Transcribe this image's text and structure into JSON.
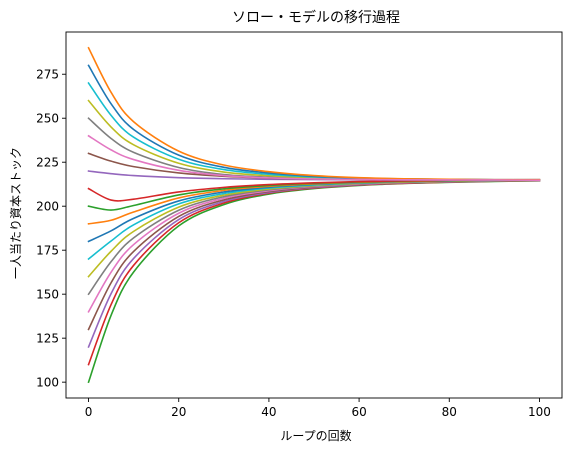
{
  "chart_data": {
    "type": "line",
    "title": "ソロー・モデルの移行過程",
    "xlabel": "ループの回数",
    "ylabel": "一人当たり資本ストック",
    "xlim": [
      -5,
      105
    ],
    "ylim": [
      91,
      299
    ],
    "xticks": [
      0,
      20,
      40,
      60,
      80,
      100
    ],
    "yticks": [
      100,
      125,
      150,
      175,
      200,
      225,
      250,
      275
    ],
    "grid": false,
    "legend": "none",
    "x": [
      0,
      5,
      10,
      20,
      30,
      40,
      50,
      60,
      70,
      80,
      90,
      100
    ],
    "series": [
      {
        "color": "#2ca02c",
        "values": [
          100,
          138.0,
          162.6,
          188.8,
          200.9,
          206.9,
          210.0,
          211.8,
          212.9,
          213.6,
          214.1,
          214.4
        ]
      },
      {
        "color": "#d62728",
        "values": [
          110,
          144.1,
          166.4,
          190.6,
          201.8,
          207.4,
          210.3,
          212.0,
          213.0,
          213.7,
          214.2,
          214.5
        ]
      },
      {
        "color": "#9467bd",
        "values": [
          120,
          150.3,
          170.3,
          192.4,
          202.7,
          207.8,
          210.6,
          212.2,
          213.2,
          213.8,
          214.3,
          214.6
        ]
      },
      {
        "color": "#8c564b",
        "values": [
          130,
          156.5,
          174.3,
          194.2,
          203.6,
          208.3,
          210.9,
          212.4,
          213.3,
          213.9,
          214.3,
          214.6
        ]
      },
      {
        "color": "#e377c2",
        "values": [
          140,
          162.5,
          178.2,
          196.0,
          204.5,
          208.8,
          211.2,
          212.6,
          213.4,
          214.0,
          214.4,
          214.7
        ]
      },
      {
        "color": "#7f7f7f",
        "values": [
          150,
          168.5,
          182.0,
          197.7,
          205.4,
          209.3,
          211.5,
          212.8,
          213.6,
          214.1,
          214.5,
          214.7
        ]
      },
      {
        "color": "#bcbd22",
        "values": [
          160,
          174.4,
          185.7,
          199.5,
          206.3,
          209.8,
          211.8,
          213.0,
          213.7,
          214.2,
          214.6,
          214.8
        ]
      },
      {
        "color": "#17becf",
        "values": [
          170,
          180.2,
          189.4,
          201.3,
          207.2,
          210.3,
          212.1,
          213.2,
          213.9,
          214.3,
          214.7,
          214.9
        ]
      },
      {
        "color": "#1f77b4",
        "values": [
          180,
          186.0,
          193.1,
          203.0,
          208.1,
          210.8,
          212.4,
          213.4,
          214.0,
          214.4,
          214.8,
          215.0
        ]
      },
      {
        "color": "#ff7f0e",
        "values": [
          190,
          192.0,
          196.7,
          204.7,
          209.0,
          211.3,
          212.7,
          213.6,
          214.1,
          214.5,
          214.8,
          215.0
        ]
      },
      {
        "color": "#2ca02c",
        "values": [
          200,
          197.8,
          200.4,
          206.4,
          209.9,
          211.8,
          213.0,
          213.8,
          214.3,
          214.6,
          214.9,
          215.1
        ]
      },
      {
        "color": "#d62728",
        "values": [
          210,
          203.5,
          204.0,
          208.1,
          210.7,
          212.3,
          213.3,
          214.0,
          214.4,
          214.7,
          214.9,
          215.1
        ]
      },
      {
        "color": "#9467bd",
        "values": [
          220,
          218.5,
          217.4,
          216.2,
          215.6,
          215.3,
          215.1,
          215.0,
          214.9,
          214.9,
          214.8,
          214.8
        ]
      },
      {
        "color": "#8c564b",
        "values": [
          230,
          225.6,
          222.5,
          218.9,
          217.0,
          216.0,
          215.5,
          215.2,
          215.0,
          214.9,
          214.9,
          214.8
        ]
      },
      {
        "color": "#7f7f7f",
        "values": [
          250,
          238.5,
          230.6,
          222.0,
          218.0,
          216.5,
          215.8,
          215.4,
          215.2,
          215.0,
          214.9,
          214.9
        ]
      },
      {
        "color": "#bcbd22",
        "values": [
          260,
          245.0,
          234.9,
          224.4,
          219.4,
          217.3,
          216.2,
          215.6,
          215.3,
          215.1,
          215.0,
          214.9
        ]
      },
      {
        "color": "#17becf",
        "values": [
          270,
          251.6,
          239.2,
          226.7,
          220.8,
          218.1,
          216.6,
          215.8,
          215.4,
          215.2,
          215.0,
          214.9
        ]
      },
      {
        "color": "#1f77b4",
        "values": [
          280,
          258.2,
          243.6,
          229.0,
          222.1,
          218.9,
          217.0,
          216.0,
          215.5,
          215.2,
          215.1,
          215.0
        ]
      },
      {
        "color": "#ff7f0e",
        "values": [
          290,
          264.7,
          248.0,
          231.3,
          223.4,
          219.6,
          217.4,
          216.2,
          215.6,
          215.3,
          215.1,
          215.0
        ]
      },
      {
        "color": "#e377c2",
        "values": [
          240,
          232.0,
          226.5,
          220.4,
          217.4,
          216.1,
          215.5,
          215.2,
          215.0,
          214.9,
          214.9,
          214.8
        ]
      }
    ]
  }
}
